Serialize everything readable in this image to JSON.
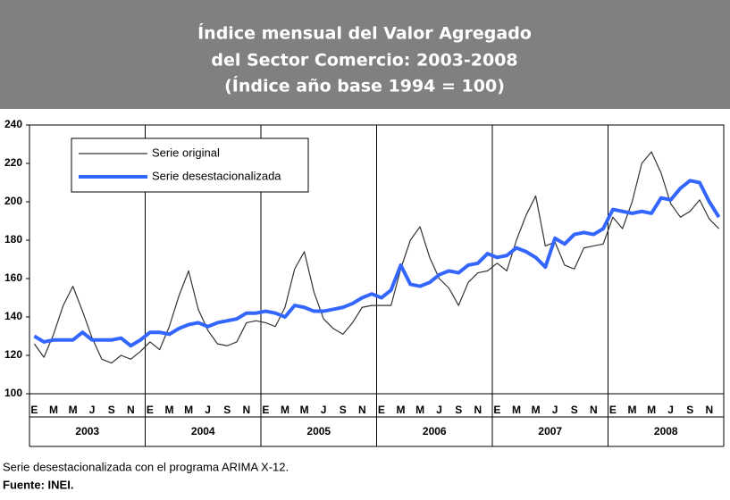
{
  "chart_data": {
    "type": "line",
    "title": [
      "Índice mensual del Valor Agregado",
      "del Sector Comercio: 2003-2008",
      "(Índice año base 1994 = 100)"
    ],
    "categories": [
      "E",
      null,
      "M",
      null,
      "M",
      null,
      "J",
      null,
      "S",
      null,
      "N",
      null,
      "E",
      null,
      "M",
      null,
      "M",
      null,
      "J",
      null,
      "S",
      null,
      "N",
      null,
      "E",
      null,
      "M",
      null,
      "M",
      null,
      "J",
      null,
      "S",
      null,
      "N",
      null,
      "E",
      null,
      "M",
      null,
      "M",
      null,
      "J",
      null,
      "S",
      null,
      "N",
      null,
      "E",
      null,
      "M",
      null,
      "M",
      null,
      "J",
      null,
      "S",
      null,
      "N",
      null,
      "E",
      null,
      "M",
      null,
      "M",
      null,
      "J",
      null,
      "S",
      null,
      "N",
      null
    ],
    "years": [
      "2003",
      "2004",
      "2005",
      "2006",
      "2007",
      "2008"
    ],
    "series": [
      {
        "name": "Serie original",
        "color": "#333333",
        "values": [
          126,
          119,
          131,
          146,
          156,
          143,
          129,
          118,
          116,
          120,
          118,
          122,
          127,
          123,
          135,
          151,
          164,
          144,
          133,
          126,
          125,
          127,
          137,
          138,
          137,
          135,
          145,
          165,
          174,
          153,
          139,
          134,
          131,
          137,
          145,
          146,
          146,
          146,
          165,
          180,
          187,
          171,
          160,
          155,
          146,
          158,
          163,
          164,
          168,
          164,
          180,
          193,
          203,
          177,
          179,
          167,
          165,
          176,
          177,
          178,
          192,
          186,
          200,
          220,
          226,
          215,
          199,
          192,
          195,
          201,
          191,
          186
        ]
      },
      {
        "name": "Serie desestacionalizada",
        "color": "#3366ff",
        "values": [
          130,
          127,
          128,
          128,
          128,
          132,
          128,
          128,
          128,
          129,
          125,
          128,
          132,
          132,
          131,
          134,
          136,
          137,
          135,
          137,
          138,
          139,
          142,
          142,
          143,
          142,
          140,
          146,
          145,
          143,
          143,
          144,
          145,
          147,
          150,
          152,
          150,
          154,
          167,
          157,
          156,
          158,
          162,
          164,
          163,
          167,
          168,
          173,
          171,
          172,
          176,
          174,
          171,
          166,
          181,
          178,
          183,
          184,
          183,
          186,
          196,
          195,
          194,
          195,
          194,
          202,
          201,
          207,
          211,
          210,
          200,
          192
        ]
      }
    ],
    "ylim": [
      100,
      240
    ],
    "yticks": [
      100,
      120,
      140,
      160,
      180,
      200,
      220,
      240
    ],
    "note": "Serie desestacionalizada con el programa ARIMA X-12.",
    "source": "Fuente: INEI."
  }
}
